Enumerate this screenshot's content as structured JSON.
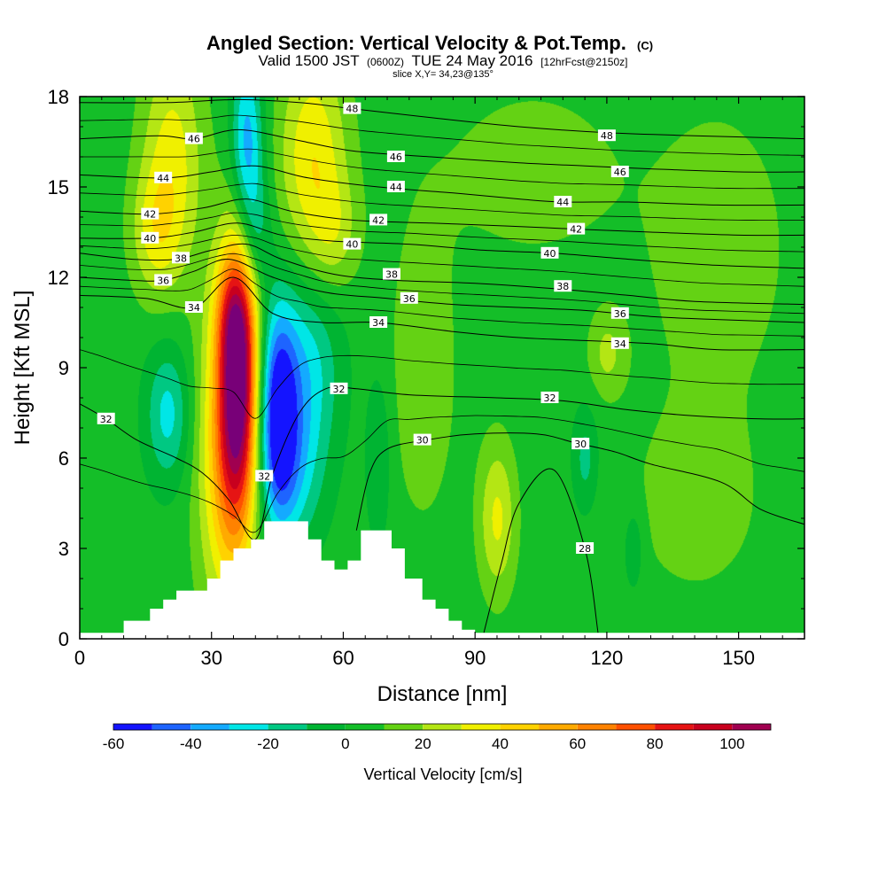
{
  "header": {
    "title": "Angled Section: Vertical Velocity & Pot.Temp.",
    "title_units": "(C)",
    "subtitle_prefix": "Valid 1500 JST",
    "subtitle_zulu": "(0600Z)",
    "subtitle_date": "TUE 24 May 2016",
    "subtitle_fcst": "[12hrFcst@2150z]",
    "slice": "slice X,Y= 34,23@135°"
  },
  "chart_data": {
    "type": "heatmap",
    "xlabel": "Distance [nm]",
    "ylabel": "Height [Kft MSL]",
    "xlim": [
      0,
      165
    ],
    "ylim": [
      0,
      18
    ],
    "x_ticks": [
      0,
      30,
      60,
      90,
      120,
      150
    ],
    "y_ticks": [
      0,
      3,
      6,
      9,
      12,
      15,
      18
    ],
    "grid": false,
    "fill_field": "Vertical Velocity [cm/s]",
    "colorbar": {
      "title": "Vertical Velocity [cm/s]",
      "placement": "bottom",
      "ticks": [
        -60,
        -40,
        -20,
        0,
        20,
        40,
        60,
        80,
        100
      ],
      "bounds": [
        -60,
        -50,
        -40,
        -30,
        -20,
        -10,
        0,
        10,
        20,
        30,
        40,
        50,
        60,
        70,
        80,
        90,
        100,
        110
      ],
      "colors": [
        "#1414ff",
        "#1e64ff",
        "#14aaff",
        "#00e6e6",
        "#00c882",
        "#00b432",
        "#14be28",
        "#64d214",
        "#b4e614",
        "#f0f000",
        "#ffd200",
        "#ffaa00",
        "#ff8200",
        "#ff5000",
        "#e61414",
        "#c8001e",
        "#a00050",
        "#780078"
      ]
    },
    "terrain_profile_kft": [
      [
        0,
        0.2
      ],
      [
        10,
        0.2
      ],
      [
        10,
        0.6
      ],
      [
        16,
        0.6
      ],
      [
        16,
        1.0
      ],
      [
        19,
        1.0
      ],
      [
        19,
        1.3
      ],
      [
        22,
        1.3
      ],
      [
        22,
        1.6
      ],
      [
        29,
        1.6
      ],
      [
        29,
        2.0
      ],
      [
        32,
        2.0
      ],
      [
        32,
        2.6
      ],
      [
        35,
        2.6
      ],
      [
        35,
        3.0
      ],
      [
        39,
        3.0
      ],
      [
        39,
        3.3
      ],
      [
        42,
        3.3
      ],
      [
        42,
        3.9
      ],
      [
        52,
        3.9
      ],
      [
        52,
        3.3
      ],
      [
        55,
        3.3
      ],
      [
        55,
        2.6
      ],
      [
        58,
        2.6
      ],
      [
        58,
        2.3
      ],
      [
        61,
        2.3
      ],
      [
        61,
        2.6
      ],
      [
        64,
        2.6
      ],
      [
        64,
        3.6
      ],
      [
        71,
        3.6
      ],
      [
        71,
        3.0
      ],
      [
        74,
        3.0
      ],
      [
        74,
        2.0
      ],
      [
        78,
        2.0
      ],
      [
        78,
        1.3
      ],
      [
        81,
        1.3
      ],
      [
        81,
        1.0
      ],
      [
        84,
        1.0
      ],
      [
        84,
        0.6
      ],
      [
        87,
        0.6
      ],
      [
        87,
        0.3
      ],
      [
        90,
        0.3
      ],
      [
        90,
        0.2
      ],
      [
        165,
        0.2
      ]
    ],
    "vv_features": [
      {
        "x": 36,
        "y": 8.5,
        "sx": 3.2,
        "sy": 3.2,
        "value": 100
      },
      {
        "x": 33,
        "y": 6.0,
        "sx": 4.5,
        "sy": 3.8,
        "value": 40
      },
      {
        "x": 35,
        "y": 10.8,
        "sx": 3.0,
        "sy": 1.3,
        "value": 25
      },
      {
        "x": 21,
        "y": 16.0,
        "sx": 5.0,
        "sy": 2.8,
        "value": 30
      },
      {
        "x": 17,
        "y": 13.5,
        "sx": 4.0,
        "sy": 1.5,
        "value": 22
      },
      {
        "x": 53,
        "y": 16.0,
        "sx": 5.5,
        "sy": 2.6,
        "value": 35
      },
      {
        "x": 58,
        "y": 13.5,
        "sx": 4.0,
        "sy": 1.3,
        "value": 15
      },
      {
        "x": 45,
        "y": 7.5,
        "sx": 3.0,
        "sy": 2.4,
        "value": -55
      },
      {
        "x": 51,
        "y": 9.0,
        "sx": 5.5,
        "sy": 2.2,
        "value": -30
      },
      {
        "x": 48,
        "y": 5.5,
        "sx": 5.0,
        "sy": 1.8,
        "value": -25
      },
      {
        "x": 38,
        "y": 16.5,
        "sx": 2.5,
        "sy": 2.0,
        "value": -40
      },
      {
        "x": 40,
        "y": 13.5,
        "sx": 2.5,
        "sy": 1.5,
        "value": -20
      },
      {
        "x": 20,
        "y": 7.5,
        "sx": 3.5,
        "sy": 1.6,
        "value": -28
      },
      {
        "x": 95,
        "y": 4.0,
        "sx": 3.0,
        "sy": 1.8,
        "value": 28
      },
      {
        "x": 120,
        "y": 9.5,
        "sx": 3.0,
        "sy": 1.0,
        "value": 18
      },
      {
        "x": 115,
        "y": 6.0,
        "sx": 2.0,
        "sy": 1.2,
        "value": -18
      },
      {
        "x": 126,
        "y": 3.0,
        "sx": 1.6,
        "sy": 1.0,
        "value": -15
      },
      {
        "x": 68,
        "y": 6.0,
        "sx": 2.0,
        "sy": 2.0,
        "value": -15
      },
      {
        "x": 103,
        "y": 15.5,
        "sx": 14.0,
        "sy": 2.0,
        "value": 12
      },
      {
        "x": 145,
        "y": 13.0,
        "sx": 12.0,
        "sy": 3.5,
        "value": 12
      },
      {
        "x": 78,
        "y": 9.0,
        "sx": 6.0,
        "sy": 4.0,
        "value": 12
      },
      {
        "x": 140,
        "y": 4.5,
        "sx": 12.0,
        "sy": 2.5,
        "value": 10
      }
    ],
    "theta_contours": [
      {
        "level": 28,
        "label": "28",
        "label_x": 115,
        "points": [
          [
            92,
            0.2
          ],
          [
            96,
            2.5
          ],
          [
            100,
            4.5
          ],
          [
            108,
            5.6
          ],
          [
            115,
            3.0
          ],
          [
            118,
            0.2
          ]
        ]
      },
      {
        "level": 30,
        "label": "30",
        "label_x": 114,
        "points": [
          [
            63,
            3.6
          ],
          [
            66,
            5.5
          ],
          [
            70,
            6.3
          ],
          [
            79,
            6.6
          ],
          [
            90,
            6.8
          ],
          [
            104,
            6.8
          ],
          [
            113,
            6.5
          ],
          [
            122,
            6.2
          ],
          [
            130,
            5.8
          ],
          [
            146,
            5.2
          ],
          [
            155,
            4.3
          ],
          [
            165,
            3.8
          ]
        ]
      },
      {
        "level": 32,
        "label": "32",
        "label_x": 6,
        "points": [
          [
            0,
            7.8
          ],
          [
            6,
            7.3
          ],
          [
            13,
            6.6
          ],
          [
            22,
            6.0
          ],
          [
            28,
            5.5
          ],
          [
            34,
            4.6
          ],
          [
            40,
            3.3
          ],
          [
            44,
            5.5
          ],
          [
            50,
            7.5
          ],
          [
            56,
            8.3
          ],
          [
            63,
            8.3
          ],
          [
            75,
            8.1
          ],
          [
            95,
            8.0
          ],
          [
            110,
            7.9
          ],
          [
            125,
            7.6
          ],
          [
            140,
            7.4
          ],
          [
            155,
            7.3
          ],
          [
            165,
            7.3
          ]
        ]
      },
      {
        "level": 34,
        "label": "34",
        "label_x": 26,
        "points": [
          [
            0,
            11.4
          ],
          [
            15,
            11.3
          ],
          [
            26,
            11.0
          ],
          [
            35,
            12.0
          ],
          [
            44,
            10.8
          ],
          [
            55,
            10.5
          ],
          [
            68,
            10.5
          ],
          [
            85,
            10.2
          ],
          [
            100,
            10.0
          ],
          [
            115,
            9.9
          ],
          [
            130,
            9.8
          ],
          [
            145,
            9.6
          ],
          [
            165,
            9.6
          ]
        ]
      },
      {
        "level": 36,
        "label": "36",
        "label_x": 19,
        "points": [
          [
            0,
            12.0
          ],
          [
            12,
            11.9
          ],
          [
            19,
            11.9
          ],
          [
            26,
            12.2
          ],
          [
            34,
            12.6
          ],
          [
            44,
            12.0
          ],
          [
            56,
            11.5
          ],
          [
            70,
            11.3
          ],
          [
            85,
            11.1
          ],
          [
            100,
            11.0
          ],
          [
            115,
            10.9
          ],
          [
            130,
            10.7
          ],
          [
            145,
            10.6
          ],
          [
            165,
            10.5
          ]
        ]
      },
      {
        "level": 38,
        "label": "38",
        "label_x": 23,
        "points": [
          [
            0,
            12.8
          ],
          [
            12,
            12.6
          ],
          [
            22,
            12.6
          ],
          [
            30,
            12.9
          ],
          [
            38,
            13.1
          ],
          [
            46,
            12.6
          ],
          [
            58,
            12.1
          ],
          [
            72,
            11.9
          ],
          [
            90,
            11.8
          ],
          [
            110,
            11.6
          ],
          [
            125,
            11.4
          ],
          [
            140,
            11.2
          ],
          [
            165,
            11.1
          ]
        ]
      },
      {
        "level": 40,
        "label": "40",
        "label_x": 16,
        "points": [
          [
            0,
            13.3
          ],
          [
            16,
            13.3
          ],
          [
            26,
            13.5
          ],
          [
            36,
            13.8
          ],
          [
            46,
            13.4
          ],
          [
            58,
            13.2
          ],
          [
            75,
            13.1
          ],
          [
            92,
            12.9
          ],
          [
            108,
            12.8
          ],
          [
            125,
            12.6
          ],
          [
            145,
            12.4
          ],
          [
            165,
            12.3
          ]
        ]
      },
      {
        "level": 42,
        "label": "42",
        "label_x": 16,
        "points": [
          [
            0,
            14.2
          ],
          [
            16,
            14.1
          ],
          [
            28,
            14.3
          ],
          [
            38,
            14.6
          ],
          [
            48,
            14.2
          ],
          [
            62,
            13.9
          ],
          [
            80,
            13.8
          ],
          [
            98,
            13.7
          ],
          [
            113,
            13.6
          ],
          [
            130,
            13.5
          ],
          [
            150,
            13.4
          ],
          [
            165,
            13.4
          ]
        ]
      },
      {
        "level": 44,
        "label": "44",
        "label_x": 19,
        "points": [
          [
            0,
            15.4
          ],
          [
            19,
            15.3
          ],
          [
            30,
            15.5
          ],
          [
            40,
            15.7
          ],
          [
            52,
            15.3
          ],
          [
            68,
            15.0
          ],
          [
            85,
            14.8
          ],
          [
            100,
            14.6
          ],
          [
            110,
            14.5
          ],
          [
            125,
            14.5
          ],
          [
            145,
            14.4
          ],
          [
            165,
            14.4
          ]
        ]
      },
      {
        "level": 46,
        "label": "46",
        "label_x": 26,
        "points": [
          [
            0,
            16.6
          ],
          [
            18,
            16.7
          ],
          [
            26,
            16.6
          ],
          [
            36,
            16.9
          ],
          [
            48,
            16.6
          ],
          [
            62,
            16.2
          ],
          [
            80,
            16.0
          ],
          [
            100,
            15.8
          ],
          [
            115,
            15.7
          ],
          [
            130,
            15.6
          ],
          [
            150,
            15.5
          ],
          [
            165,
            15.5
          ]
        ]
      },
      {
        "level": 48,
        "label": "48",
        "label_x": 62,
        "points": [
          [
            0,
            17.8
          ],
          [
            20,
            17.8
          ],
          [
            36,
            17.9
          ],
          [
            50,
            17.8
          ],
          [
            62,
            17.6
          ],
          [
            80,
            17.3
          ],
          [
            100,
            17.0
          ],
          [
            120,
            16.8
          ],
          [
            140,
            16.7
          ],
          [
            165,
            16.6
          ]
        ]
      }
    ],
    "extra_contour_labels": [
      {
        "text": "46",
        "x": 72,
        "y": 16.0
      },
      {
        "text": "44",
        "x": 72,
        "y": 15.0
      },
      {
        "text": "42",
        "x": 68,
        "y": 13.9
      },
      {
        "text": "40",
        "x": 62,
        "y": 13.1
      },
      {
        "text": "38",
        "x": 71,
        "y": 12.1
      },
      {
        "text": "36",
        "x": 75,
        "y": 11.3
      },
      {
        "text": "34",
        "x": 68,
        "y": 10.5
      },
      {
        "text": "32",
        "x": 59,
        "y": 8.3
      },
      {
        "text": "30",
        "x": 78,
        "y": 6.6
      },
      {
        "text": "32",
        "x": 42,
        "y": 5.4
      },
      {
        "text": "48",
        "x": 120,
        "y": 16.7
      },
      {
        "text": "46",
        "x": 123,
        "y": 15.5
      },
      {
        "text": "44",
        "x": 110,
        "y": 14.5
      },
      {
        "text": "42",
        "x": 113,
        "y": 13.6
      },
      {
        "text": "40",
        "x": 107,
        "y": 12.8
      },
      {
        "text": "38",
        "x": 110,
        "y": 11.7
      },
      {
        "text": "36",
        "x": 123,
        "y": 10.8
      },
      {
        "text": "34",
        "x": 123,
        "y": 9.8
      },
      {
        "text": "32",
        "x": 107,
        "y": 8.0
      }
    ]
  }
}
